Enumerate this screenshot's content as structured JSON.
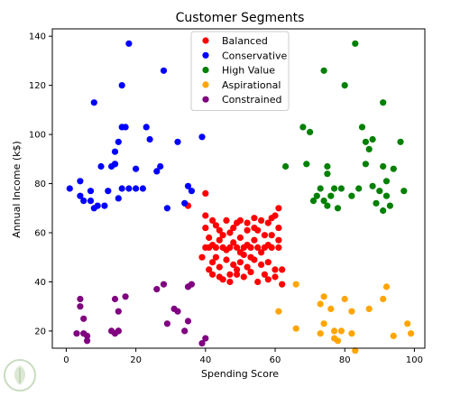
{
  "chart_data": {
    "type": "scatter",
    "title": "Customer Segments",
    "xlabel": "Spending Score",
    "ylabel": "Annual Income (k$)",
    "xlim": [
      -4,
      103
    ],
    "ylim": [
      13,
      143
    ],
    "xticks": [
      0,
      20,
      40,
      60,
      80,
      100
    ],
    "yticks": [
      20,
      40,
      60,
      80,
      100,
      120,
      140
    ],
    "grid": false,
    "legend_position": "top-center",
    "series": [
      {
        "name": "Balanced",
        "color": "#ff0000",
        "points": [
          [
            35,
            71
          ],
          [
            40,
            76
          ],
          [
            40,
            67
          ],
          [
            40,
            62
          ],
          [
            41,
            58
          ],
          [
            42,
            65
          ],
          [
            43,
            63
          ],
          [
            44,
            61
          ],
          [
            46,
            65
          ],
          [
            47,
            60
          ],
          [
            49,
            64
          ],
          [
            50,
            65
          ],
          [
            52,
            64
          ],
          [
            54,
            62
          ],
          [
            56,
            65
          ],
          [
            58,
            64
          ],
          [
            59,
            66
          ],
          [
            60,
            67
          ],
          [
            61,
            70
          ],
          [
            59,
            59
          ],
          [
            42,
            55
          ],
          [
            44,
            57
          ],
          [
            46,
            53
          ],
          [
            48,
            56
          ],
          [
            50,
            52
          ],
          [
            52,
            55
          ],
          [
            54,
            57
          ],
          [
            56,
            52
          ],
          [
            58,
            55
          ],
          [
            57,
            59
          ],
          [
            40,
            54
          ],
          [
            41,
            54
          ],
          [
            43,
            54
          ],
          [
            45,
            54
          ],
          [
            47,
            54
          ],
          [
            49,
            54
          ],
          [
            51,
            54
          ],
          [
            53,
            54
          ],
          [
            55,
            54
          ],
          [
            57,
            54
          ],
          [
            59,
            54
          ],
          [
            61,
            54
          ],
          [
            42,
            48
          ],
          [
            44,
            46
          ],
          [
            46,
            49
          ],
          [
            48,
            47
          ],
          [
            50,
            48
          ],
          [
            52,
            46
          ],
          [
            54,
            49
          ],
          [
            56,
            47
          ],
          [
            58,
            48
          ],
          [
            60,
            45
          ],
          [
            42,
            43
          ],
          [
            44,
            42
          ],
          [
            45,
            41
          ],
          [
            47,
            40
          ],
          [
            49,
            43
          ],
          [
            51,
            42
          ],
          [
            53,
            44
          ],
          [
            55,
            40
          ],
          [
            57,
            43
          ],
          [
            58,
            41
          ],
          [
            60,
            42
          ],
          [
            62,
            39
          ],
          [
            62,
            45
          ],
          [
            61,
            57
          ],
          [
            41,
            45
          ],
          [
            47,
            43
          ],
          [
            53,
            50
          ],
          [
            55,
            61
          ],
          [
            45,
            59
          ],
          [
            39,
            50
          ],
          [
            48,
            62
          ],
          [
            50,
            58
          ],
          [
            52,
            61
          ],
          [
            54,
            66
          ],
          [
            49,
            45
          ],
          [
            61,
            62
          ],
          [
            43,
            50
          ],
          [
            51,
            51
          ]
        ]
      },
      {
        "name": "Conservative",
        "color": "#0000ff",
        "points": [
          [
            1,
            78
          ],
          [
            4,
            81
          ],
          [
            4,
            75
          ],
          [
            5,
            73
          ],
          [
            7,
            73
          ],
          [
            7,
            77
          ],
          [
            8,
            113
          ],
          [
            8,
            70
          ],
          [
            9,
            71
          ],
          [
            10,
            87
          ],
          [
            11,
            71
          ],
          [
            12,
            77
          ],
          [
            13,
            87
          ],
          [
            14,
            88
          ],
          [
            14,
            88
          ],
          [
            14,
            93
          ],
          [
            15,
            97
          ],
          [
            15,
            74
          ],
          [
            16,
            120
          ],
          [
            16,
            103
          ],
          [
            16,
            78
          ],
          [
            17,
            103
          ],
          [
            18,
            137
          ],
          [
            18,
            78
          ],
          [
            20,
            86
          ],
          [
            20,
            78
          ],
          [
            22,
            78
          ],
          [
            23,
            103
          ],
          [
            24,
            98
          ],
          [
            26,
            85
          ],
          [
            27,
            87
          ],
          [
            28,
            126
          ],
          [
            29,
            70
          ],
          [
            32,
            97
          ],
          [
            34,
            72
          ],
          [
            35,
            79
          ],
          [
            36,
            77
          ],
          [
            39,
            99
          ]
        ]
      },
      {
        "name": "High Value",
        "color": "#008000",
        "points": [
          [
            63,
            87
          ],
          [
            68,
            103
          ],
          [
            69,
            88
          ],
          [
            70,
            101
          ],
          [
            71,
            73
          ],
          [
            72,
            75
          ],
          [
            73,
            78
          ],
          [
            74,
            126
          ],
          [
            74,
            73
          ],
          [
            75,
            71
          ],
          [
            75,
            87
          ],
          [
            75,
            84
          ],
          [
            76,
            75
          ],
          [
            77,
            78
          ],
          [
            78,
            70
          ],
          [
            79,
            78
          ],
          [
            80,
            120
          ],
          [
            82,
            75
          ],
          [
            83,
            137
          ],
          [
            84,
            78
          ],
          [
            85,
            103
          ],
          [
            86,
            88
          ],
          [
            86,
            97
          ],
          [
            87,
            94
          ],
          [
            88,
            79
          ],
          [
            88,
            98
          ],
          [
            89,
            72
          ],
          [
            90,
            77
          ],
          [
            91,
            113
          ],
          [
            91,
            69
          ],
          [
            91,
            87
          ],
          [
            92,
            81
          ],
          [
            92,
            75
          ],
          [
            93,
            71
          ],
          [
            94,
            86
          ],
          [
            96,
            97
          ],
          [
            97,
            77
          ]
        ]
      },
      {
        "name": "Aspirational",
        "color": "#ffa500",
        "points": [
          [
            61,
            28
          ],
          [
            66,
            39
          ],
          [
            66,
            21
          ],
          [
            73,
            19
          ],
          [
            73,
            31
          ],
          [
            74,
            34
          ],
          [
            74,
            23
          ],
          [
            76,
            29
          ],
          [
            77,
            20
          ],
          [
            77,
            17
          ],
          [
            78,
            16
          ],
          [
            79,
            20
          ],
          [
            80,
            33
          ],
          [
            82,
            19
          ],
          [
            82,
            28
          ],
          [
            83,
            12
          ],
          [
            87,
            29
          ],
          [
            91,
            33
          ],
          [
            92,
            38
          ],
          [
            94,
            18
          ],
          [
            98,
            23
          ],
          [
            99,
            19
          ]
        ]
      },
      {
        "name": "Constrained",
        "color": "#800080",
        "points": [
          [
            3,
            19
          ],
          [
            4,
            33
          ],
          [
            4,
            30
          ],
          [
            5,
            25
          ],
          [
            5,
            19
          ],
          [
            6,
            16
          ],
          [
            6,
            18
          ],
          [
            13,
            20
          ],
          [
            14,
            33
          ],
          [
            14,
            19
          ],
          [
            15,
            28
          ],
          [
            15,
            20
          ],
          [
            15,
            20
          ],
          [
            17,
            34
          ],
          [
            26,
            37
          ],
          [
            28,
            39
          ],
          [
            29,
            23
          ],
          [
            31,
            29
          ],
          [
            32,
            28
          ],
          [
            34,
            20
          ],
          [
            35,
            24
          ],
          [
            35,
            38
          ],
          [
            36,
            39
          ],
          [
            39,
            15
          ],
          [
            40,
            17
          ]
        ]
      }
    ]
  }
}
